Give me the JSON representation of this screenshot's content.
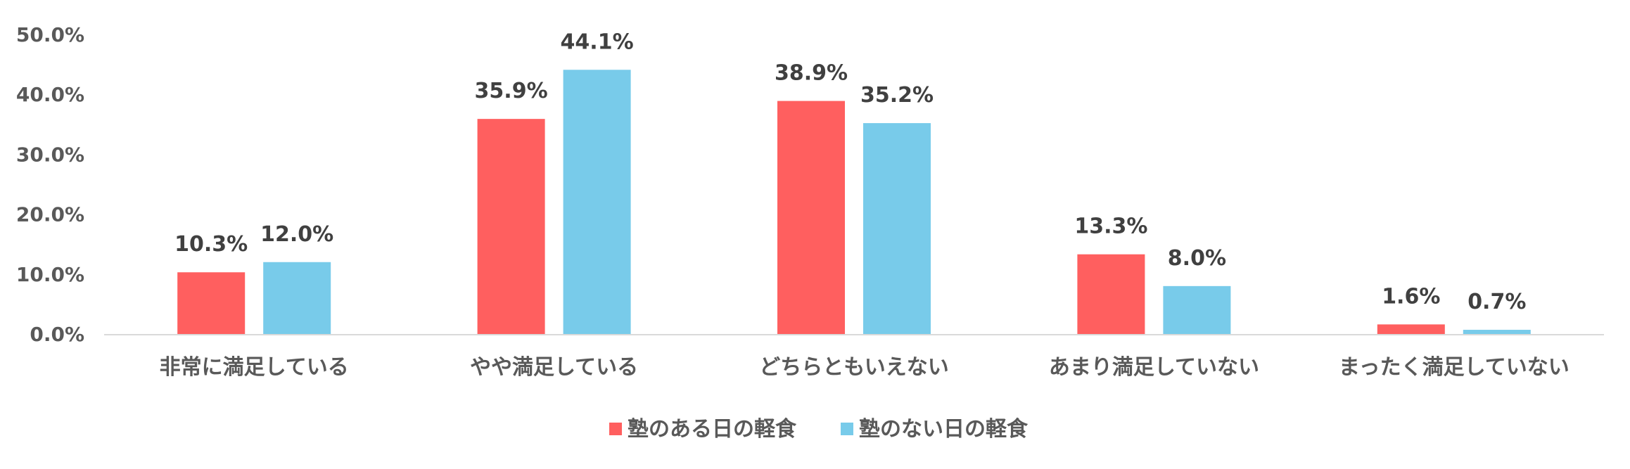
{
  "chart_data": {
    "type": "bar",
    "title": "",
    "xlabel": "",
    "ylabel": "",
    "ylim": [
      0,
      50
    ],
    "yticks": [
      "0.0%",
      "10.0%",
      "20.0%",
      "30.0%",
      "40.0%",
      "50.0%"
    ],
    "ytick_values": [
      0,
      10,
      20,
      30,
      40,
      50
    ],
    "categories": [
      "非常に満足している",
      "やや満足している",
      "どちらともいえない",
      "あまり満足していない",
      "まったく満足していない"
    ],
    "series": [
      {
        "name": "塾のある日の軽食",
        "color": "#FF5F5F",
        "values": [
          10.3,
          35.9,
          38.9,
          13.3,
          1.6
        ],
        "labels": [
          "10.3%",
          "35.9%",
          "38.9%",
          "13.3%",
          "1.6%"
        ]
      },
      {
        "name": "塾のない日の軽食",
        "color": "#78CBEA",
        "values": [
          12.0,
          44.1,
          35.2,
          8.0,
          0.7
        ],
        "labels": [
          "12.0%",
          "44.1%",
          "35.2%",
          "8.0%",
          "0.7%"
        ]
      }
    ],
    "gridlines": false,
    "legend_position": "bottom",
    "axis_color": "#D9D9D9"
  }
}
